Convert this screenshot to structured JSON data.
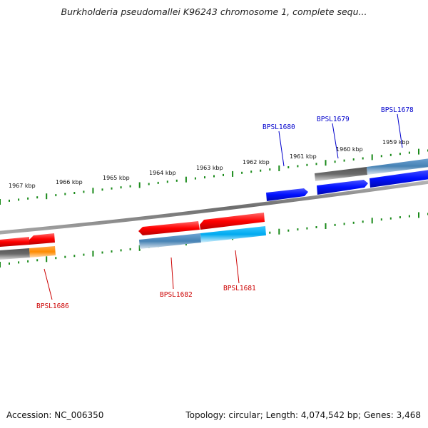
{
  "title": "Burkholderia pseudomallei K96243 chromosome 1, complete sequ...",
  "footer": {
    "accession": "Accession: NC_006350",
    "summary": "Topology: circular; Length: 4,074,542 bp; Genes: 3,468"
  },
  "colors": {
    "tick": "#1a8a1a",
    "backbone": "#8a8a8a",
    "forward_label": "#0000cc",
    "reverse_label": "#cc0000",
    "gene_red": "#ff1a1a",
    "gene_blue": "#0a14ff",
    "gene_steel": "#4a88bf",
    "gene_cyan": "#10b8f0",
    "gene_gray": "#6a6a6a",
    "gene_orange": "#ff8c00"
  },
  "scale_labels": [
    "1959 kbp",
    "1960 kbp",
    "1961 kbp",
    "1962 kbp",
    "1963 kbp",
    "1964 kbp",
    "1965 kbp",
    "1966 kbp",
    "1967 kbp"
  ],
  "gene_labels": {
    "forward": [
      "BPSL1678",
      "BPSL1679",
      "BPSL1680"
    ],
    "reverse": [
      "BPSL1681",
      "BPSL1682",
      "BPSL1686"
    ]
  }
}
